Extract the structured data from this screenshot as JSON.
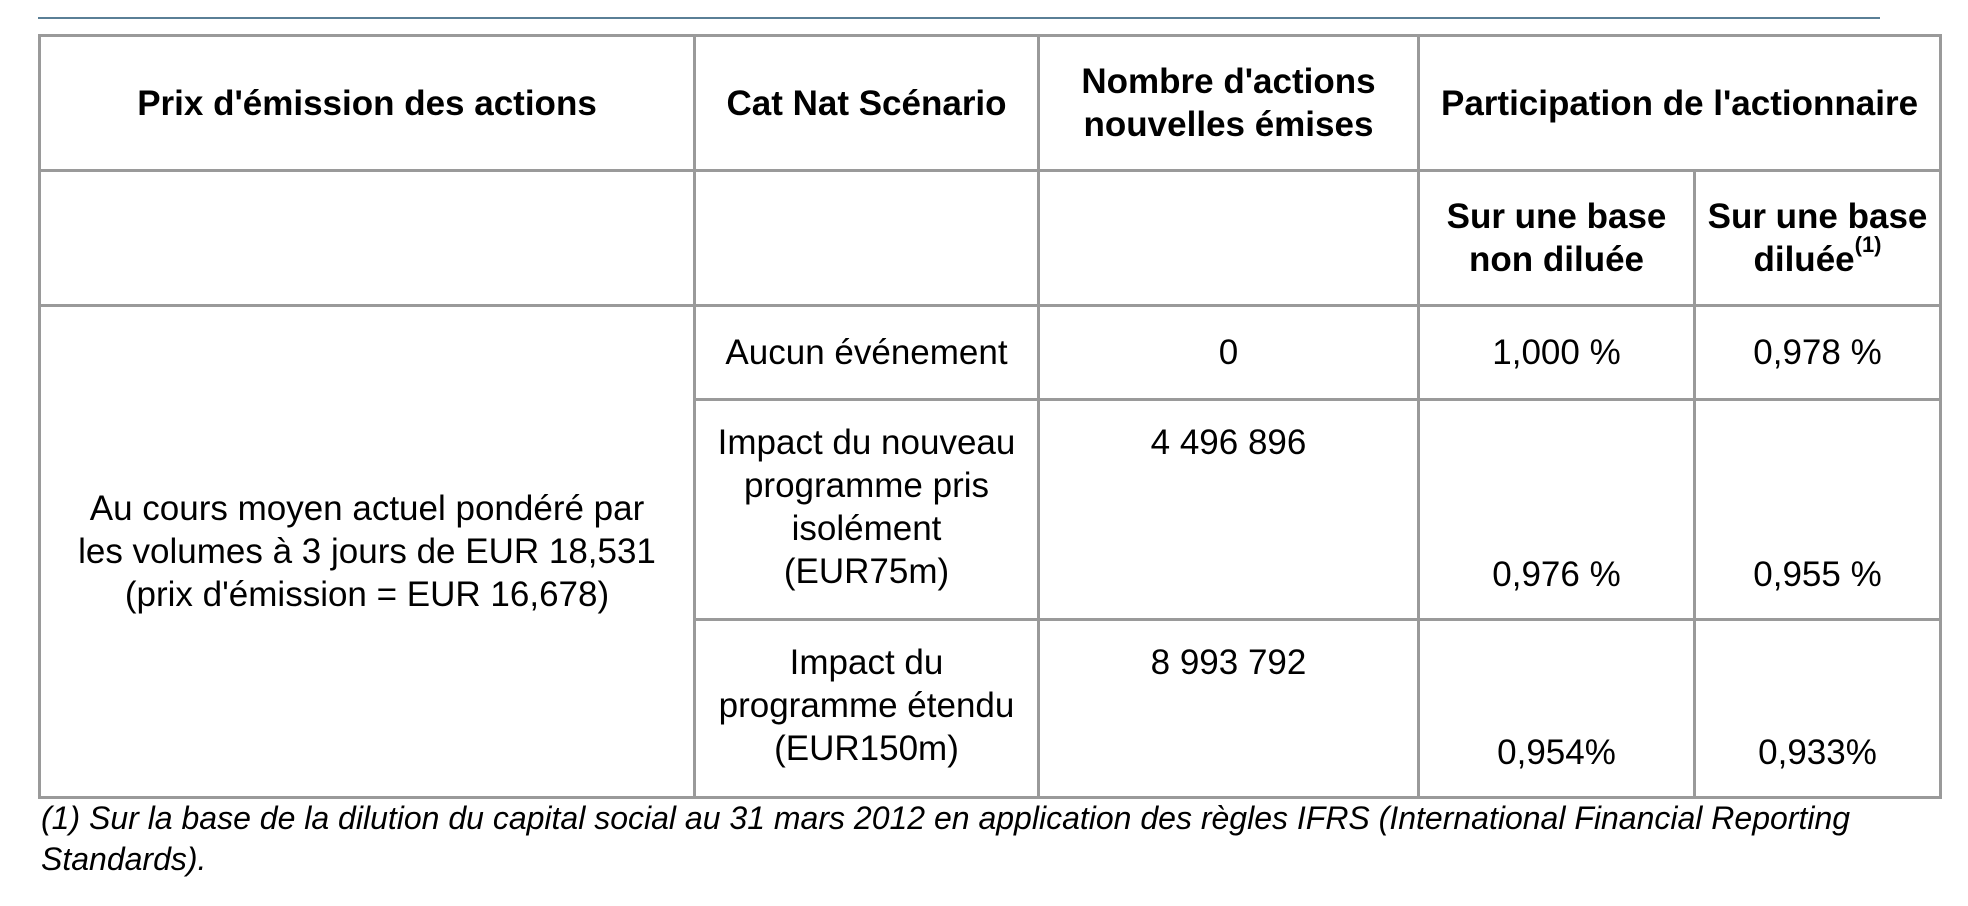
{
  "headers": {
    "col1": "Prix d'émission des actions",
    "col2": "Cat Nat Scénario",
    "col3_line1": "Nombre d'actions",
    "col3_line2": "nouvelles émises",
    "col4": "Participation de l'actionnaire",
    "sub1_line1": "Sur une base",
    "sub1_line2": "non diluée",
    "sub2_line1": "Sur une base",
    "sub2_line2": "diluée",
    "sub2_sup": "(1)"
  },
  "price_cell": {
    "line1": "Au cours moyen actuel pondéré par",
    "line2": "les volumes à 3 jours de EUR 18,531",
    "line3": "(prix d'émission = EUR 16,678)"
  },
  "rows": [
    {
      "scenario_lines": [
        "Aucun événement"
      ],
      "new_shares": "0",
      "non_diluted": "1,000 %",
      "diluted": "0,978 %"
    },
    {
      "scenario_lines": [
        "Impact du nouveau",
        "programme pris",
        "isolément",
        "(EUR75m)"
      ],
      "new_shares": "4 496 896",
      "non_diluted": "0,976 %",
      "diluted": "0,955 %"
    },
    {
      "scenario_lines": [
        "Impact du",
        "programme étendu",
        "(EUR150m)"
      ],
      "new_shares": "8 993 792",
      "non_diluted": "0,954%",
      "diluted": "0,933%"
    }
  ],
  "footnote_line1": "(1) Sur la base de la dilution du capital social au 31 mars 2012 en application des règles IFRS (International Financial Reporting",
  "footnote_line2": "Standards).",
  "colors": {
    "rule": "#5a7f96",
    "border": "#9a9a9a"
  }
}
